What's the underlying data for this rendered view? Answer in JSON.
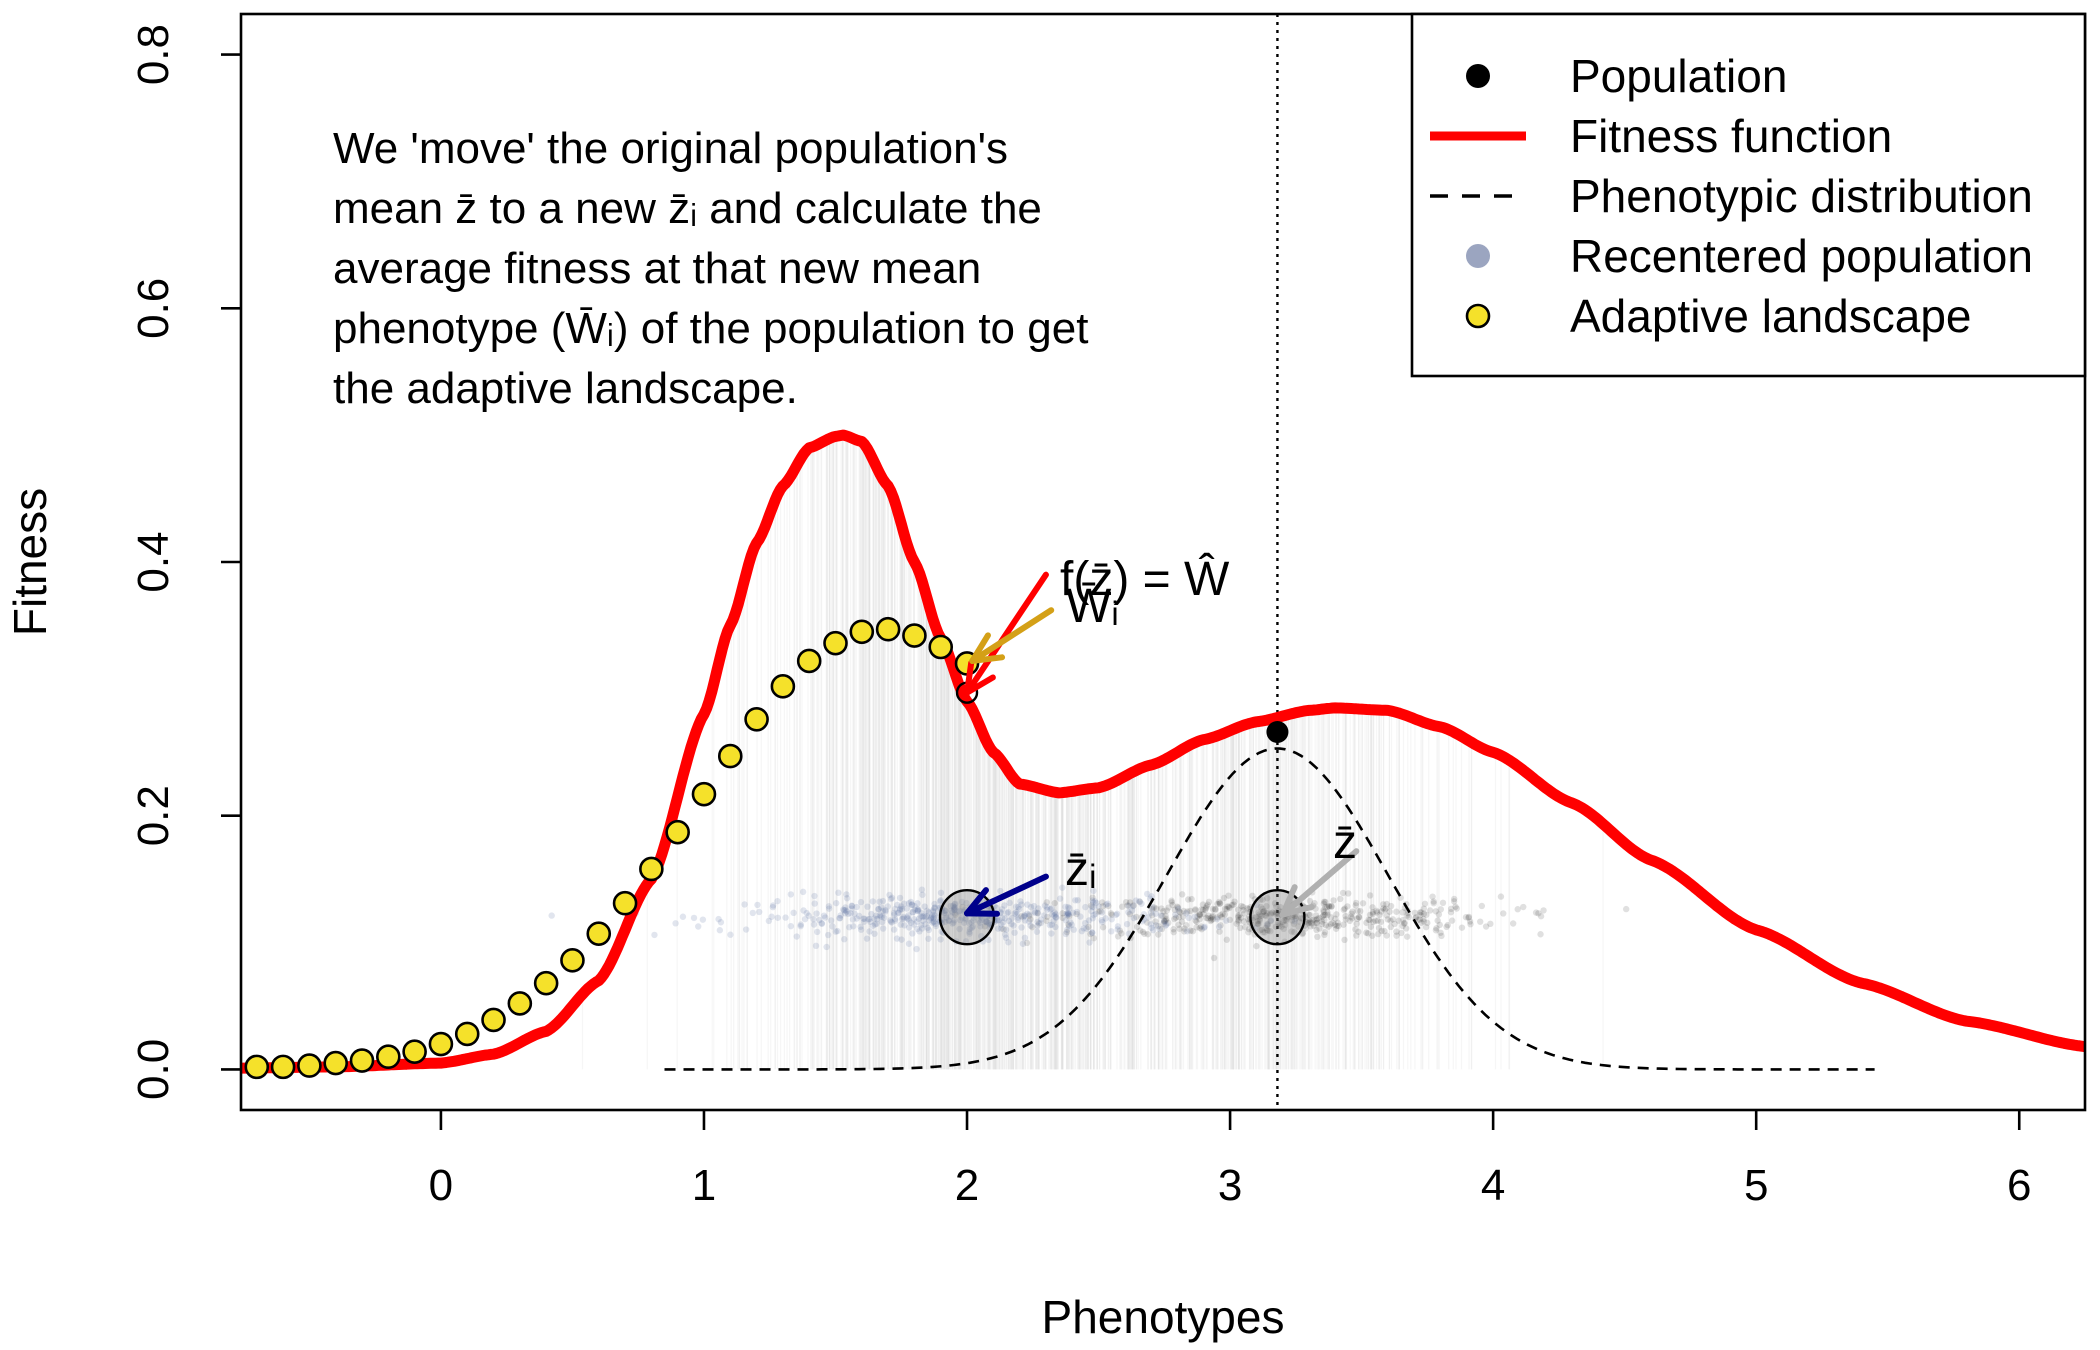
{
  "chart_data": {
    "type": "line",
    "xlabel": "Phenotypes",
    "ylabel": "Fitness",
    "xlim": [
      -0.76,
      6.25
    ],
    "ylim": [
      -0.032,
      0.832
    ],
    "x_ticks": [
      0,
      1,
      2,
      3,
      4,
      5,
      6
    ],
    "x_tick_labels": [
      "0",
      "1",
      "2",
      "3",
      "4",
      "5",
      "6"
    ],
    "y_ticks": [
      0.0,
      0.2,
      0.4,
      0.6,
      0.8
    ],
    "y_tick_labels": [
      "0.0",
      "0.2",
      "0.4",
      "0.6",
      "0.8"
    ],
    "grid": false,
    "legend_position": "top-right",
    "legend": [
      {
        "label": "Population",
        "symbol": "filled-dot",
        "color": "#000000"
      },
      {
        "label": "Fitness function",
        "symbol": "thick-line",
        "color": "#ff0000"
      },
      {
        "label": "Phenotypic distribution",
        "symbol": "dashed-line",
        "color": "#000000"
      },
      {
        "label": "Recentered population",
        "symbol": "filled-dot",
        "color": "#8a95b5"
      },
      {
        "label": "Adaptive landscape",
        "symbol": "outlined-dot",
        "color": "#f5e12a"
      }
    ],
    "fitness_function": {
      "name": "Fitness function",
      "color": "#ff0000",
      "x": [
        -0.76,
        -0.4,
        0.0,
        0.2,
        0.4,
        0.6,
        0.8,
        1.0,
        1.1,
        1.2,
        1.3,
        1.4,
        1.5,
        1.53,
        1.6,
        1.7,
        1.8,
        1.9,
        2.0,
        2.1,
        2.2,
        2.35,
        2.5,
        2.7,
        2.9,
        3.1,
        3.3,
        3.4,
        3.6,
        3.8,
        4.0,
        4.3,
        4.6,
        5.0,
        5.4,
        5.8,
        6.25
      ],
      "y": [
        0.001,
        0.002,
        0.005,
        0.012,
        0.03,
        0.07,
        0.15,
        0.28,
        0.35,
        0.415,
        0.46,
        0.49,
        0.499,
        0.5,
        0.495,
        0.46,
        0.4,
        0.34,
        0.29,
        0.25,
        0.225,
        0.218,
        0.222,
        0.24,
        0.26,
        0.274,
        0.283,
        0.285,
        0.283,
        0.27,
        0.25,
        0.21,
        0.165,
        0.11,
        0.068,
        0.038,
        0.018
      ]
    },
    "phenotypic_distribution": {
      "name": "Phenotypic distribution",
      "color": "#000000",
      "style": "dashed",
      "mean": 3.18,
      "sd": 0.42,
      "peak": 0.253,
      "x_range": [
        0.85,
        5.45
      ]
    },
    "adaptive_landscape": {
      "name": "Adaptive landscape",
      "color": "#f5e12a",
      "x": [
        -0.7,
        -0.6,
        -0.5,
        -0.4,
        -0.3,
        -0.2,
        -0.1,
        0.0,
        0.1,
        0.2,
        0.3,
        0.4,
        0.5,
        0.6,
        0.7,
        0.8,
        0.9,
        1.0,
        1.1,
        1.2,
        1.3,
        1.4,
        1.5,
        1.6,
        1.7,
        1.8,
        1.9,
        2.0
      ],
      "y": [
        0.002,
        0.002,
        0.003,
        0.005,
        0.007,
        0.01,
        0.014,
        0.02,
        0.028,
        0.039,
        0.052,
        0.068,
        0.086,
        0.107,
        0.131,
        0.158,
        0.187,
        0.217,
        0.247,
        0.276,
        0.302,
        0.322,
        0.336,
        0.345,
        0.347,
        0.342,
        0.333,
        0.32
      ]
    },
    "population_point": {
      "name": "Population",
      "x": 3.18,
      "y": 0.266,
      "color": "#000000"
    },
    "population_mean_line_x": 3.18,
    "population_cloud": {
      "label": "Population",
      "center_x": 3.18,
      "sd_x": 0.42,
      "y": 0.12,
      "n": 500,
      "color": "#000000"
    },
    "recentered_cloud": {
      "label": "Recentered population",
      "center_x": 2.0,
      "sd_x": 0.42,
      "y": 0.12,
      "n": 500,
      "color": "#5a6e9e"
    },
    "mean_circles": [
      {
        "name": "z-bar-i",
        "x": 2.0,
        "y": 0.12
      },
      {
        "name": "z-bar",
        "x": 3.18,
        "y": 0.12
      }
    ],
    "open_point": {
      "x": 2.0,
      "y": 0.297
    },
    "annotation_paragraph": [
      "We 'move' the original population's",
      "mean z̄ to a new z̄ᵢ and calculate the",
      "average fitness at that new mean",
      "phenotype (W̄ᵢ) of the population to get",
      "the adaptive landscape."
    ],
    "math_labels": {
      "f_z": "f(z̄) = Ŵ",
      "w_i": "W̄ᵢ",
      "z_i": "z̄ᵢ",
      "z": "z̄"
    },
    "arrows": [
      {
        "name": "red-arrow",
        "color": "#ff0000",
        "from": [
          2.3,
          0.39
        ],
        "to": [
          2.0,
          0.297
        ]
      },
      {
        "name": "gold-arrow",
        "color": "#d4a017",
        "from": [
          2.32,
          0.362
        ],
        "to": [
          2.02,
          0.322
        ]
      },
      {
        "name": "blue-arrow",
        "color": "#00008b",
        "from": [
          2.3,
          0.152
        ],
        "to": [
          2.0,
          0.123
        ]
      },
      {
        "name": "gray-arrow",
        "color": "#b0b0b0",
        "from": [
          3.48,
          0.172
        ],
        "to": [
          3.2,
          0.122
        ]
      }
    ]
  }
}
